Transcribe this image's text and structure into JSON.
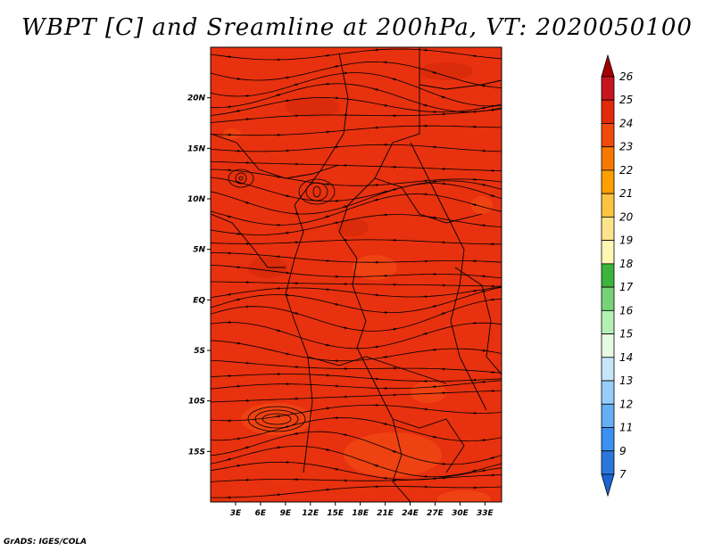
{
  "title": "WBPT [C] and Sreamline at 200hPa, VT: 2020050100",
  "footer": "GrADS: IGES/COLA",
  "map": {
    "lon_range": [
      0,
      35
    ],
    "lat_range": [
      -20,
      25
    ],
    "lat_ticks": [
      {
        "value": 20,
        "label": "20N"
      },
      {
        "value": 15,
        "label": "15N"
      },
      {
        "value": 10,
        "label": "10N"
      },
      {
        "value": 5,
        "label": "5N"
      },
      {
        "value": 0,
        "label": "EQ"
      },
      {
        "value": -5,
        "label": "5S"
      },
      {
        "value": -10,
        "label": "10S"
      },
      {
        "value": -15,
        "label": "15S"
      }
    ],
    "lon_ticks": [
      {
        "value": 3,
        "label": "3E"
      },
      {
        "value": 6,
        "label": "6E"
      },
      {
        "value": 9,
        "label": "9E"
      },
      {
        "value": 12,
        "label": "12E"
      },
      {
        "value": 15,
        "label": "15E"
      },
      {
        "value": 18,
        "label": "18E"
      },
      {
        "value": 21,
        "label": "21E"
      },
      {
        "value": 24,
        "label": "24E"
      },
      {
        "value": 27,
        "label": "27E"
      },
      {
        "value": 30,
        "label": "30E"
      },
      {
        "value": 33,
        "label": "33E"
      }
    ],
    "field_colors": {
      "base": "#e8310e",
      "dark": "#d42a08",
      "light": "#f24a14"
    }
  },
  "colorbar": {
    "levels": [
      "26",
      "25",
      "24",
      "23",
      "22",
      "21",
      "20",
      "19",
      "18",
      "17",
      "16",
      "15",
      "14",
      "13",
      "12",
      "11",
      "9",
      "7"
    ],
    "colors": [
      "#a50000",
      "#c8141e",
      "#e22a0a",
      "#f24a0a",
      "#f77a00",
      "#fba000",
      "#fcc440",
      "#fde48c",
      "#fdf7b4",
      "#3cb43c",
      "#78d278",
      "#b4f0b4",
      "#e6fae6",
      "#c8e6fa",
      "#96cdfa",
      "#64aff5",
      "#3c91f0",
      "#2878dc",
      "#1e64d2"
    ]
  }
}
